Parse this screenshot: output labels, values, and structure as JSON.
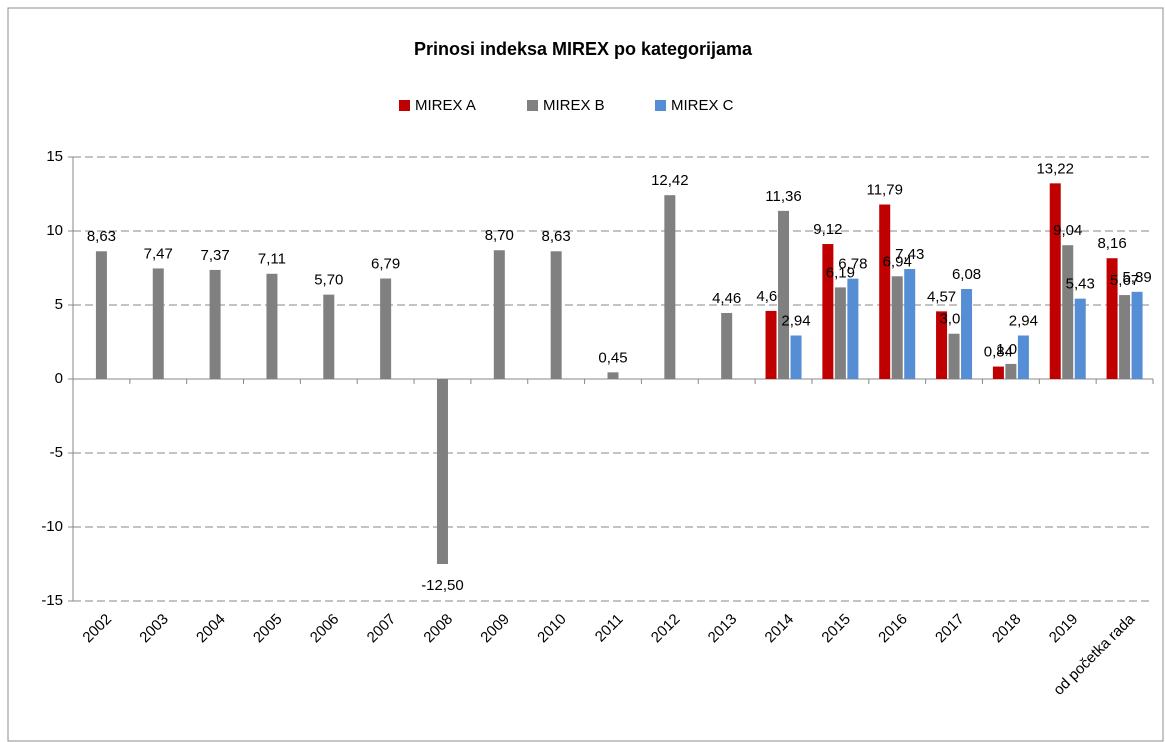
{
  "chart_data": {
    "type": "bar",
    "title": "Prinosi indeksa MIREX po kategorijama",
    "categories": [
      "2002",
      "2003",
      "2004",
      "2005",
      "2006",
      "2007",
      "2008",
      "2009",
      "2010",
      "2011",
      "2012",
      "2013",
      "2014",
      "2015",
      "2016",
      "2017",
      "2018",
      "2019",
      "od početka rada"
    ],
    "series": [
      {
        "name": "MIREX A",
        "color": "#c00000",
        "values": [
          null,
          null,
          null,
          null,
          null,
          null,
          null,
          null,
          null,
          null,
          null,
          null,
          4.6,
          9.12,
          11.79,
          4.57,
          0.84,
          13.22,
          8.16
        ],
        "value_labels": [
          null,
          null,
          null,
          null,
          null,
          null,
          null,
          null,
          null,
          null,
          null,
          null,
          "4,60",
          "9,12",
          "11,79",
          "4,57",
          "0,84",
          "13,22",
          "8,16"
        ]
      },
      {
        "name": "MIREX B",
        "color": "#808080",
        "values": [
          8.63,
          7.47,
          7.37,
          7.11,
          5.7,
          6.79,
          -12.5,
          8.7,
          8.63,
          0.45,
          12.42,
          4.46,
          11.36,
          6.19,
          6.94,
          3.06,
          1.02,
          9.04,
          5.67
        ],
        "value_labels": [
          "8,63",
          "7,47",
          "7,37",
          "7,11",
          "5,70",
          "6,79",
          "-12,50",
          "8,70",
          "8,63",
          "0,45",
          "12,42",
          "4,46",
          "11,36",
          "6,19",
          "6,94",
          "3,06",
          "1,02",
          "9,04",
          "5,67"
        ]
      },
      {
        "name": "MIREX C",
        "color": "#558ed5",
        "values": [
          null,
          null,
          null,
          null,
          null,
          null,
          null,
          null,
          null,
          null,
          null,
          null,
          2.94,
          6.78,
          7.43,
          6.08,
          2.94,
          5.43,
          5.89
        ],
        "value_labels": [
          null,
          null,
          null,
          null,
          null,
          null,
          null,
          null,
          null,
          null,
          null,
          null,
          "2,94",
          "6,78",
          "7,43",
          "6,08",
          "2,94",
          "5,43",
          "5,89"
        ]
      }
    ],
    "ylim": [
      -15,
      15
    ],
    "yticks": [
      -15,
      -10,
      -5,
      0,
      5,
      10,
      15
    ],
    "grid": true,
    "legend": "top"
  }
}
